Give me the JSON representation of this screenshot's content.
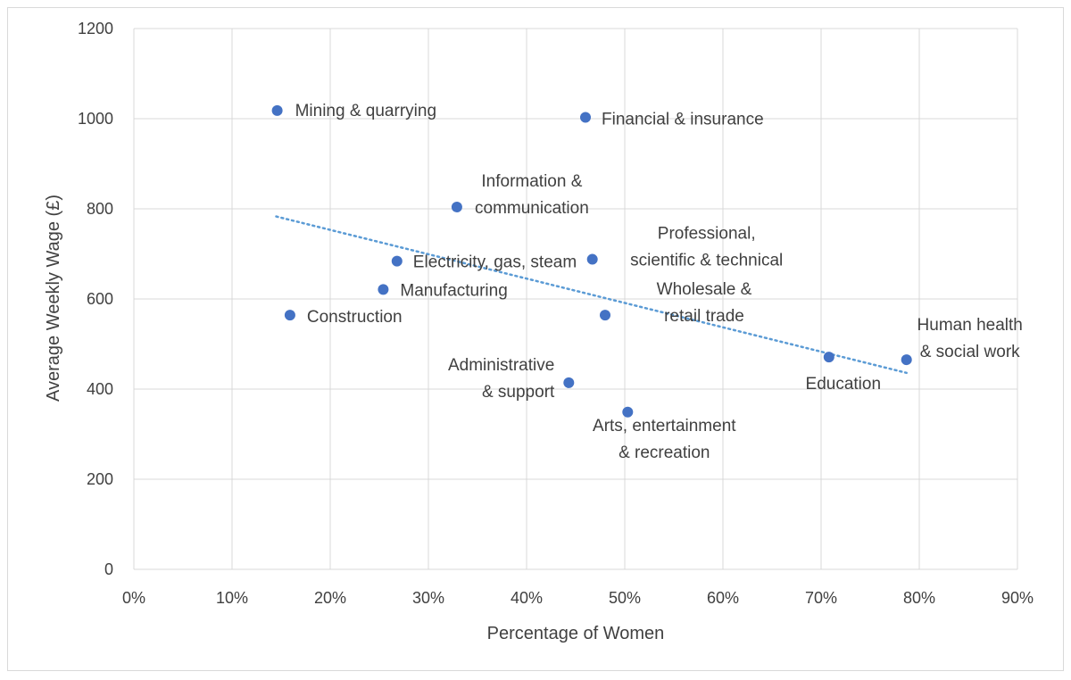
{
  "chart_data": {
    "type": "scatter",
    "title": "",
    "xlabel": "Percentage of Women",
    "ylabel": "Average Weekly Wage (£)",
    "xlim": [
      0,
      0.9
    ],
    "ylim": [
      0,
      1200
    ],
    "x_ticks": [
      "0%",
      "10%",
      "20%",
      "30%",
      "40%",
      "50%",
      "60%",
      "70%",
      "80%",
      "90%"
    ],
    "y_ticks": [
      "0",
      "200",
      "400",
      "600",
      "800",
      "1000",
      "1200"
    ],
    "grid": true,
    "legend": "none",
    "marker_color": "#4472c4",
    "trendline": {
      "style": "dotted linear",
      "color": "#5b9bd5",
      "x_start": 0.145,
      "y_start": 783,
      "x_end": 0.787,
      "y_end": 436
    },
    "points": [
      {
        "label": "Mining & quarrying",
        "x": 0.146,
        "y": 1018
      },
      {
        "label": "Financial & insurance",
        "x": 0.46,
        "y": 1003
      },
      {
        "label": "Information & communication",
        "x": 0.329,
        "y": 804
      },
      {
        "label": "Professional, scientific & technical",
        "x": 0.467,
        "y": 688
      },
      {
        "label": "Electricity, gas, steam",
        "x": 0.268,
        "y": 684
      },
      {
        "label": "Manufacturing",
        "x": 0.254,
        "y": 621
      },
      {
        "label": "Construction",
        "x": 0.159,
        "y": 564
      },
      {
        "label": "Wholesale & retail trade",
        "x": 0.48,
        "y": 564
      },
      {
        "label": "Administrative & support",
        "x": 0.443,
        "y": 414
      },
      {
        "label": "Arts, entertainment & recreation",
        "x": 0.503,
        "y": 349
      },
      {
        "label": "Education",
        "x": 0.708,
        "y": 471
      },
      {
        "label": "Human health & social work",
        "x": 0.787,
        "y": 465
      }
    ]
  }
}
